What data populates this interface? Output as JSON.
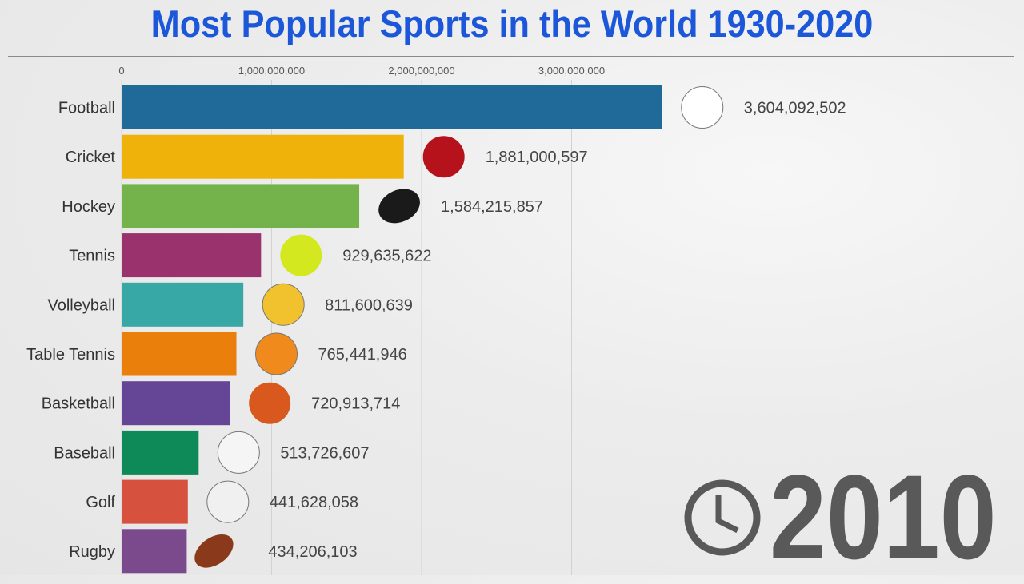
{
  "chart_data": {
    "type": "bar",
    "orientation": "horizontal",
    "title": "Most Popular Sports in the World 1930-2020",
    "xlim": [
      0,
      3700000000
    ],
    "xticks": [
      0,
      1000000000,
      2000000000,
      3000000000
    ],
    "xtick_labels": [
      "0",
      "1,000,000,000",
      "2,000,000,000",
      "3,000,000,000"
    ],
    "grid": true,
    "categories": [
      "Football",
      "Cricket",
      "Hockey",
      "Tennis",
      "Volleyball",
      "Table Tennis",
      "Basketball",
      "Baseball",
      "Golf",
      "Rugby"
    ],
    "values": [
      3604092502,
      1881000597,
      1584215857,
      929635622,
      811600639,
      765441946,
      720913714,
      513726607,
      441628058,
      434206103
    ],
    "value_labels": [
      "3,604,092,502",
      "1,881,000,597",
      "1,584,215,857",
      "929,635,622",
      "811,600,639",
      "765,441,946",
      "720,913,714",
      "513,726,607",
      "441,628,058",
      "434,206,103"
    ],
    "colors": [
      "#1f6a99",
      "#efb20a",
      "#74b24c",
      "#9a326d",
      "#37a8a5",
      "#eb7f0c",
      "#654596",
      "#0d8a57",
      "#d6523f",
      "#7b4a8c"
    ],
    "icons": [
      "soccer-ball-icon",
      "cricket-ball-icon",
      "hockey-puck-icon",
      "tennis-ball-icon",
      "volleyball-icon",
      "table-tennis-ball-icon",
      "basketball-icon",
      "baseball-icon",
      "golf-ball-icon",
      "rugby-ball-icon"
    ],
    "icon_colors": [
      "#ffffff",
      "#b5121b",
      "#1a1a1a",
      "#d4e81f",
      "#f2c12e",
      "#f08a1c",
      "#d9581e",
      "#f5f5f5",
      "#f0f0f0",
      "#8a3a1a"
    ]
  },
  "year": "2010",
  "clock_icon": "clock-icon"
}
